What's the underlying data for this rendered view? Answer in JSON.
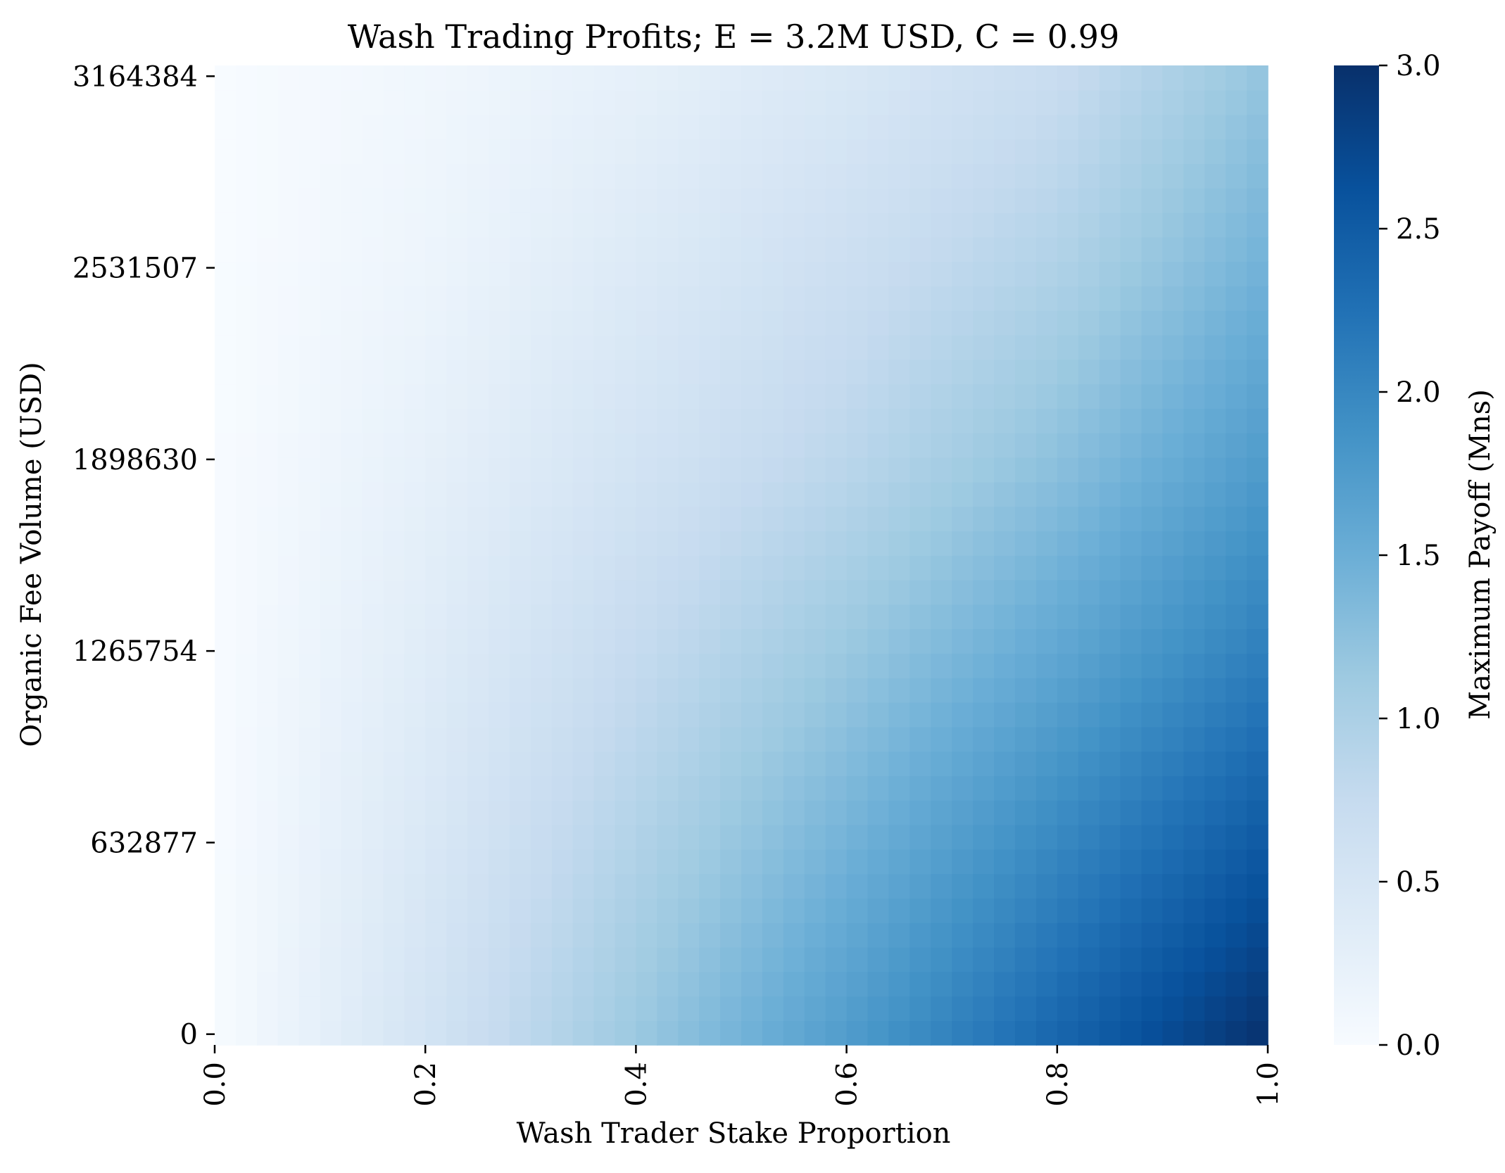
{
  "chart_data": {
    "type": "heatmap",
    "title": "Wash Trading Profits; E = 3.2M USD, C = 0.99",
    "xlabel": "Wash Trader Stake Proportion",
    "ylabel": "Organic Fee Volume (USD)",
    "colorbar_label": "Maximum Payoff (Mns)",
    "colormap": "Blues",
    "colormap_stops": [
      "#f7fbff",
      "#deebf7",
      "#c6dbef",
      "#9ecae1",
      "#6baed6",
      "#4292c6",
      "#2171b5",
      "#08519c",
      "#08306b"
    ],
    "x_range": [
      0.0,
      1.0
    ],
    "y_range": [
      0,
      3164384
    ],
    "x_ticks": [
      "0.0",
      "0.2",
      "0.4",
      "0.6",
      "0.8",
      "1.0"
    ],
    "x_tick_values": [
      0.0,
      0.2,
      0.4,
      0.6,
      0.8,
      1.0
    ],
    "y_ticks": [
      "0",
      "632877",
      "1265754",
      "1898630",
      "2531507",
      "3164384"
    ],
    "y_tick_values": [
      0,
      632877,
      1265754,
      1898630,
      2531507,
      3164384
    ],
    "colorbar_ticks": [
      "0.0",
      "0.5",
      "1.0",
      "1.5",
      "2.0",
      "2.5",
      "3.0"
    ],
    "colorbar_tick_values": [
      0.0,
      0.5,
      1.0,
      1.5,
      2.0,
      2.5,
      3.0
    ],
    "vmin": 0.0,
    "vmax": 3.0,
    "grid": false,
    "payoff_samples": {
      "x": [
        0.0,
        0.2,
        0.4,
        0.6,
        0.8,
        1.0
      ],
      "y": [
        0,
        632877,
        1265754,
        1898630,
        2531507,
        3164384
      ],
      "values": [
        [
          0.0,
          0.55,
          1.15,
          1.75,
          2.4,
          3.0
        ],
        [
          0.0,
          0.45,
          0.95,
          1.45,
          2.0,
          2.55
        ],
        [
          0.0,
          0.35,
          0.75,
          1.15,
          1.6,
          2.1
        ],
        [
          0.0,
          0.25,
          0.55,
          0.85,
          1.25,
          1.75
        ],
        [
          0.0,
          0.15,
          0.4,
          0.65,
          0.95,
          1.45
        ],
        [
          0.0,
          0.1,
          0.25,
          0.45,
          0.7,
          1.2
        ]
      ]
    }
  }
}
